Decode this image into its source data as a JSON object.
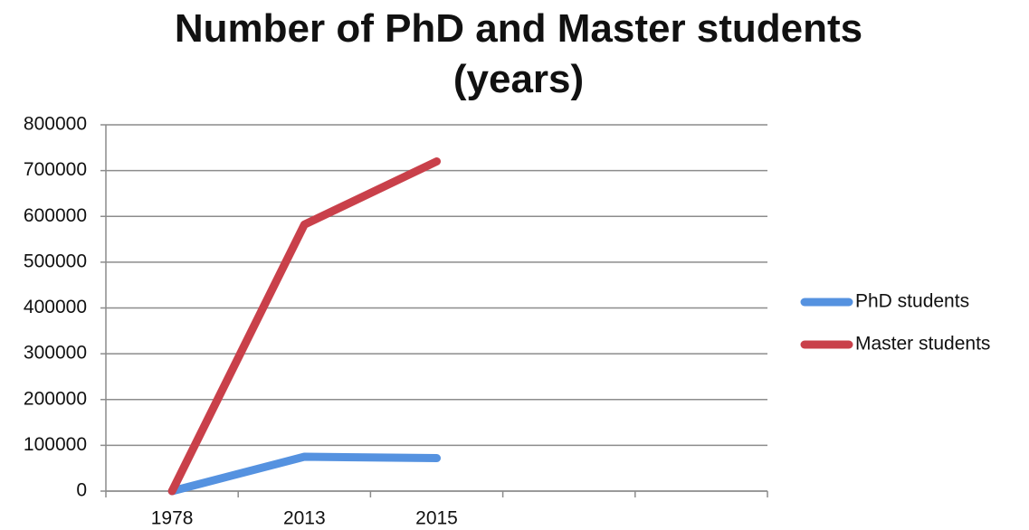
{
  "chart_data": {
    "type": "line",
    "title": "Number of PhD and Master students (years)",
    "categories": [
      "1978",
      "2013",
      "2015",
      null,
      null
    ],
    "series": [
      {
        "name": "PhD students",
        "color": "#5592e0",
        "values": [
          0,
          75000,
          72000,
          null,
          null
        ]
      },
      {
        "name": "Master students",
        "color": "#c9404a",
        "values": [
          0,
          582000,
          720000,
          null,
          null
        ]
      }
    ],
    "ylim": [
      0,
      800000
    ],
    "yticks": [
      0,
      100000,
      200000,
      300000,
      400000,
      500000,
      600000,
      700000,
      800000
    ],
    "grid": true,
    "legend": "right"
  }
}
